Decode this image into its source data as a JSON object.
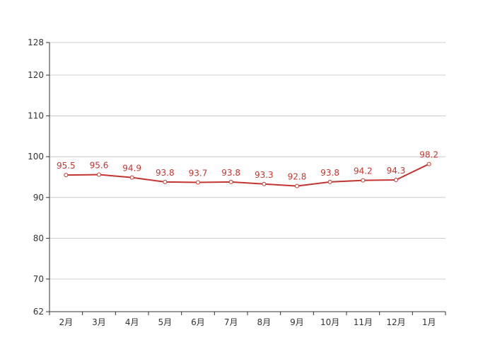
{
  "chart_data": {
    "type": "line",
    "title": "",
    "xlabel": "",
    "ylabel": "",
    "categories": [
      "2月",
      "3月",
      "4月",
      "5月",
      "6月",
      "7月",
      "8月",
      "9月",
      "10月",
      "11月",
      "12月",
      "1月"
    ],
    "series": [
      {
        "values": [
          95.5,
          95.6,
          94.9,
          93.8,
          93.7,
          93.8,
          93.3,
          92.8,
          93.8,
          94.2,
          94.3,
          98.2
        ]
      }
    ],
    "ylim": [
      62,
      128
    ],
    "y_ticks": [
      62,
      70,
      80,
      90,
      100,
      110,
      120,
      128
    ],
    "grid": true,
    "data_labels": true,
    "colors": {
      "line": "#c23531",
      "grid": "#cccccc",
      "axis": "#333333",
      "marker_fill": "#ffffff"
    }
  }
}
